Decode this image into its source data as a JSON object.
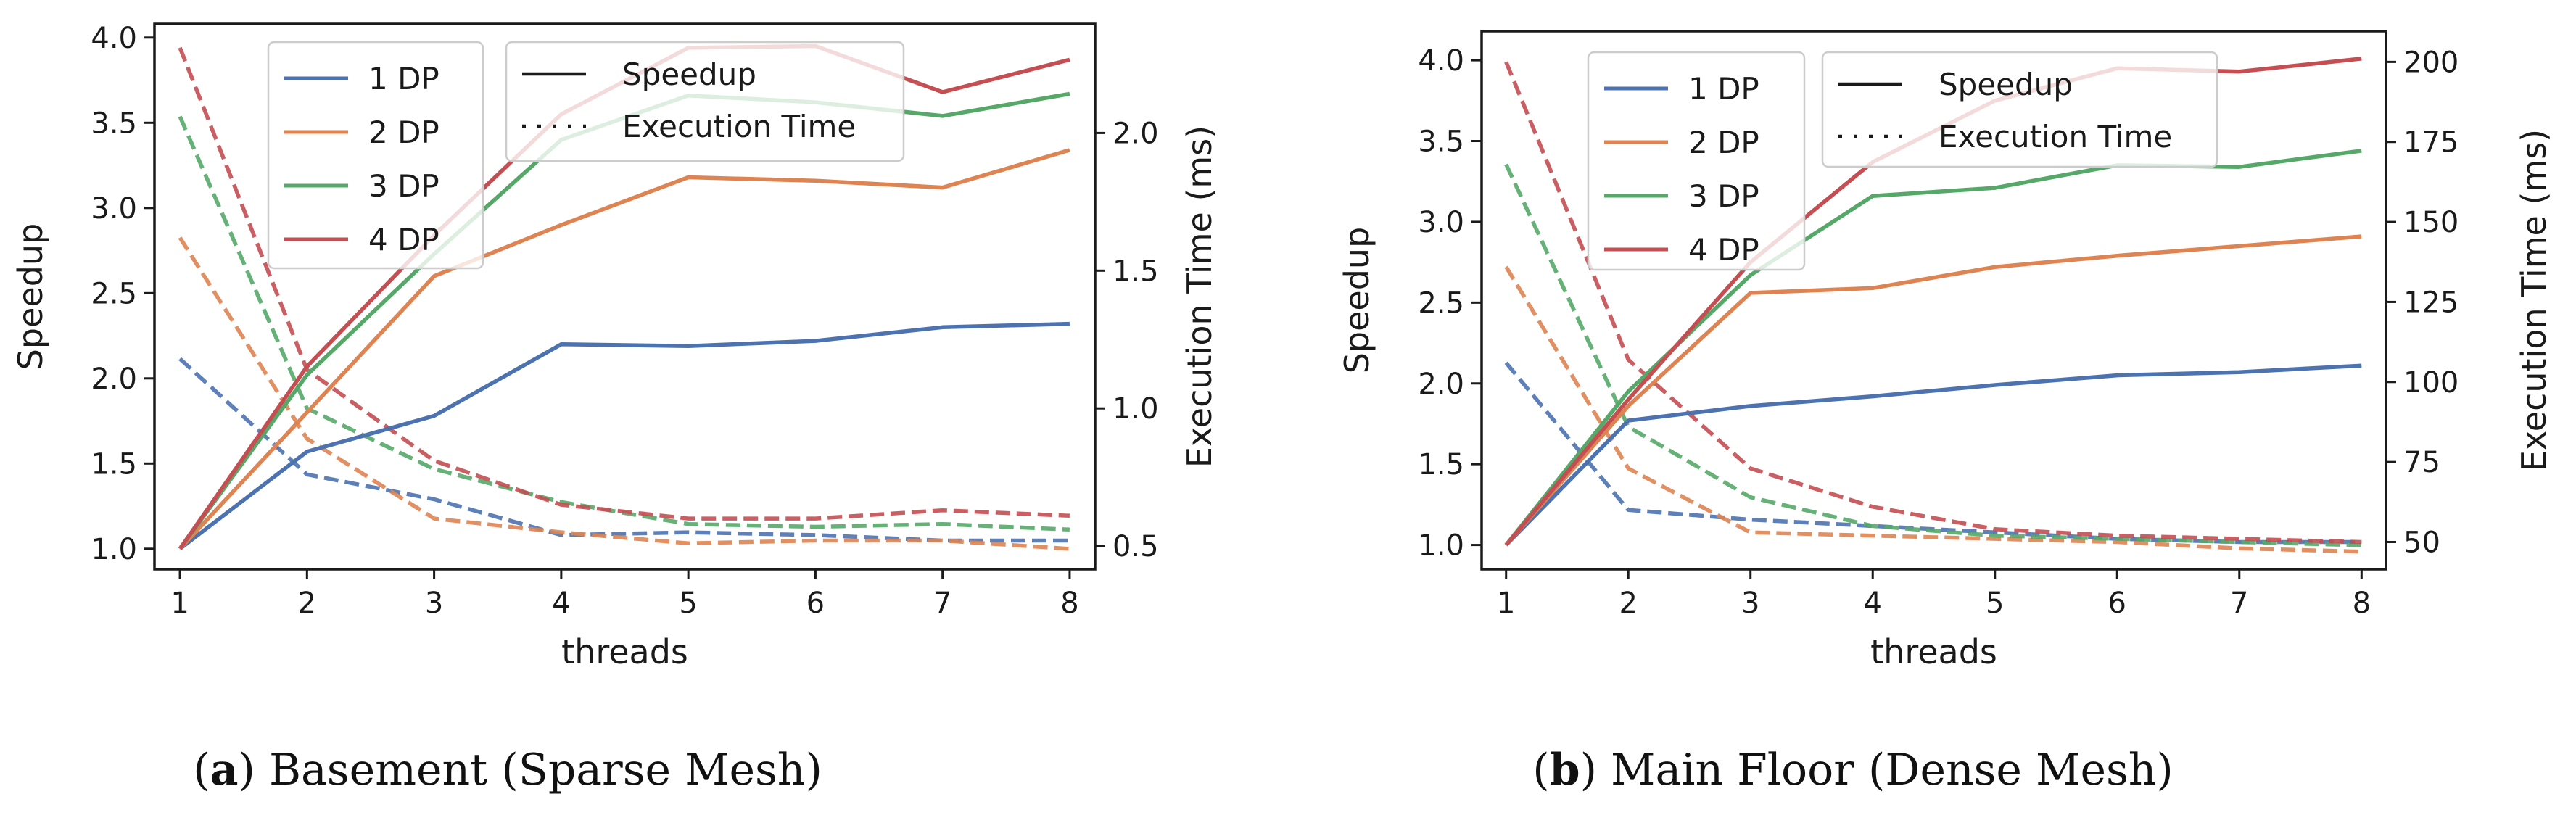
{
  "colors": {
    "1 DP": "#4c72b0",
    "2 DP": "#dd8452",
    "3 DP": "#55a868",
    "4 DP": "#c44e52",
    "axis": "#1a1a1a"
  },
  "chart_data": [
    {
      "type": "line",
      "caption_letter": "a",
      "caption_text": "Basement (Sparse Mesh)",
      "xlabel": "threads",
      "ylabel": "Speedup",
      "y2label": "Execution Time (ms)",
      "x": [
        1,
        2,
        3,
        4,
        5,
        6,
        7,
        8
      ],
      "xlim": [
        0.8,
        8.2
      ],
      "xticks": [
        "1",
        "2",
        "3",
        "4",
        "5",
        "6",
        "7",
        "8"
      ],
      "ylim": [
        0.88,
        4.08
      ],
      "yticks": [
        "1.0",
        "1.5",
        "2.0",
        "2.5",
        "3.0",
        "3.5",
        "4.0"
      ],
      "y2lim": [
        0.416,
        2.396
      ],
      "y2ticks": [
        "0.5",
        "1.0",
        "1.5",
        "2.0"
      ],
      "legend_series": [
        "1 DP",
        "2 DP",
        "3 DP",
        "4 DP"
      ],
      "legend_styles": [
        "Speedup",
        "Execution Time"
      ],
      "speedup": [
        {
          "name": "1 DP",
          "values": [
            1.0,
            1.57,
            1.78,
            2.2,
            2.19,
            2.22,
            2.3,
            2.32
          ]
        },
        {
          "name": "2 DP",
          "values": [
            1.0,
            1.8,
            2.6,
            2.9,
            3.18,
            3.16,
            3.12,
            3.34
          ]
        },
        {
          "name": "3 DP",
          "values": [
            1.0,
            2.02,
            2.73,
            3.4,
            3.66,
            3.62,
            3.54,
            3.67
          ]
        },
        {
          "name": "4 DP",
          "values": [
            1.0,
            2.07,
            2.84,
            3.55,
            3.94,
            3.95,
            3.68,
            3.87
          ]
        }
      ],
      "execution_time": [
        {
          "name": "1 DP",
          "values": [
            1.18,
            0.76,
            0.67,
            0.54,
            0.55,
            0.54,
            0.52,
            0.52
          ]
        },
        {
          "name": "2 DP",
          "values": [
            1.62,
            0.89,
            0.6,
            0.55,
            0.51,
            0.52,
            0.52,
            0.49
          ]
        },
        {
          "name": "3 DP",
          "values": [
            2.06,
            1.0,
            0.78,
            0.66,
            0.58,
            0.57,
            0.58,
            0.56
          ]
        },
        {
          "name": "4 DP",
          "values": [
            2.31,
            1.14,
            0.81,
            0.65,
            0.6,
            0.6,
            0.63,
            0.61
          ]
        }
      ]
    },
    {
      "type": "line",
      "caption_letter": "b",
      "caption_text": "Main Floor (Dense Mesh)",
      "xlabel": "threads",
      "ylabel": "Speedup",
      "y2label": "Execution Time (ms)",
      "x": [
        1,
        2,
        3,
        4,
        5,
        6,
        7,
        8
      ],
      "xlim": [
        0.8,
        8.2
      ],
      "xticks": [
        "1",
        "2",
        "3",
        "4",
        "5",
        "6",
        "7",
        "8"
      ],
      "ylim": [
        0.85,
        4.18
      ],
      "yticks": [
        "1.0",
        "1.5",
        "2.0",
        "2.5",
        "3.0",
        "3.5",
        "4.0"
      ],
      "y2lim": [
        41.5,
        209.6
      ],
      "y2ticks": [
        "50",
        "75",
        "100",
        "125",
        "150",
        "175",
        "200"
      ],
      "legend_series": [
        "1 DP",
        "2 DP",
        "3 DP",
        "4 DP"
      ],
      "legend_styles": [
        "Speedup",
        "Execution Time"
      ],
      "speedup": [
        {
          "name": "1 DP",
          "values": [
            1.0,
            1.77,
            1.86,
            1.92,
            1.99,
            2.05,
            2.07,
            2.11
          ]
        },
        {
          "name": "2 DP",
          "values": [
            1.0,
            1.86,
            2.56,
            2.59,
            2.72,
            2.79,
            2.85,
            2.91
          ]
        },
        {
          "name": "3 DP",
          "values": [
            1.0,
            1.95,
            2.67,
            3.16,
            3.21,
            3.35,
            3.34,
            3.44
          ]
        },
        {
          "name": "4 DP",
          "values": [
            1.0,
            1.9,
            2.75,
            3.37,
            3.75,
            3.95,
            3.93,
            4.01
          ]
        }
      ],
      "execution_time": [
        {
          "name": "1 DP",
          "values": [
            106,
            60,
            57,
            55,
            53,
            51,
            50,
            50
          ]
        },
        {
          "name": "2 DP",
          "values": [
            136,
            73,
            53,
            52,
            51,
            50,
            48,
            47
          ]
        },
        {
          "name": "3 DP",
          "values": [
            168,
            86,
            64,
            55,
            52,
            51,
            50,
            49
          ]
        },
        {
          "name": "4 DP",
          "values": [
            200,
            107,
            73,
            61,
            54,
            52,
            51,
            50
          ]
        }
      ]
    }
  ]
}
